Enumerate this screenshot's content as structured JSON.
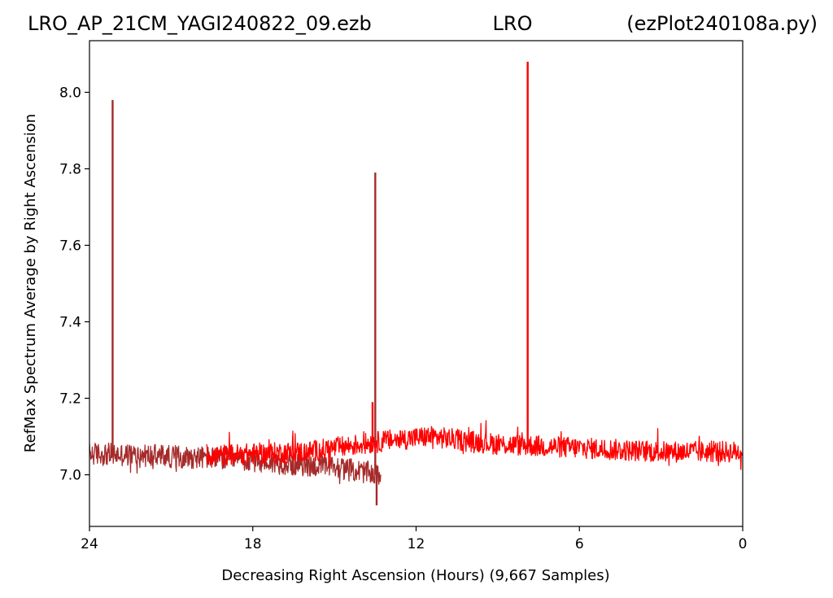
{
  "header": {
    "file_name": "LRO_AP_21CM_YAGI240822_09.ezb",
    "station": "LRO",
    "script_name": "(ezPlot240108a.py)"
  },
  "chart_data": {
    "type": "line",
    "title": "",
    "xlabel": "Decreasing Right Ascension (Hours) (9,667 Samples)",
    "ylabel": "RefMax Spectrum Average by Right Ascension",
    "x_reversed": true,
    "xlim": [
      24,
      0
    ],
    "ylim": [
      6.865,
      8.135
    ],
    "x_ticks": [
      24,
      18,
      12,
      6,
      0
    ],
    "x_tick_labels": [
      "24",
      "18",
      "12",
      "6",
      "0"
    ],
    "y_ticks": [
      7.0,
      7.2,
      7.4,
      7.6,
      7.8,
      8.0
    ],
    "y_tick_labels": [
      "7.0",
      "7.2",
      "7.4",
      "7.6",
      "7.8",
      "8.0"
    ],
    "grid": false,
    "legend": "none",
    "series": [
      {
        "color": "#a52a2a",
        "baseline": [
          [
            24.0,
            7.055
          ],
          [
            19.7,
            7.045
          ],
          [
            15.0,
            7.02
          ],
          [
            13.3,
            7.0
          ]
        ],
        "noise_amplitude": 0.03,
        "spikes": [
          {
            "x": 23.15,
            "y": 7.98
          },
          {
            "x": 13.5,
            "y": 7.79
          },
          {
            "x": 13.45,
            "y": 6.92
          }
        ]
      },
      {
        "color": "#ff0000",
        "baseline": [
          [
            19.7,
            7.05
          ],
          [
            16.0,
            7.06
          ],
          [
            13.0,
            7.09
          ],
          [
            11.5,
            7.1
          ],
          [
            9.0,
            7.08
          ],
          [
            6.0,
            7.07
          ],
          [
            3.0,
            7.06
          ],
          [
            0.0,
            7.06
          ]
        ],
        "noise_amplitude": 0.028,
        "spikes": [
          {
            "x": 7.9,
            "y": 8.08
          },
          {
            "x": 13.6,
            "y": 7.19
          }
        ]
      }
    ]
  }
}
